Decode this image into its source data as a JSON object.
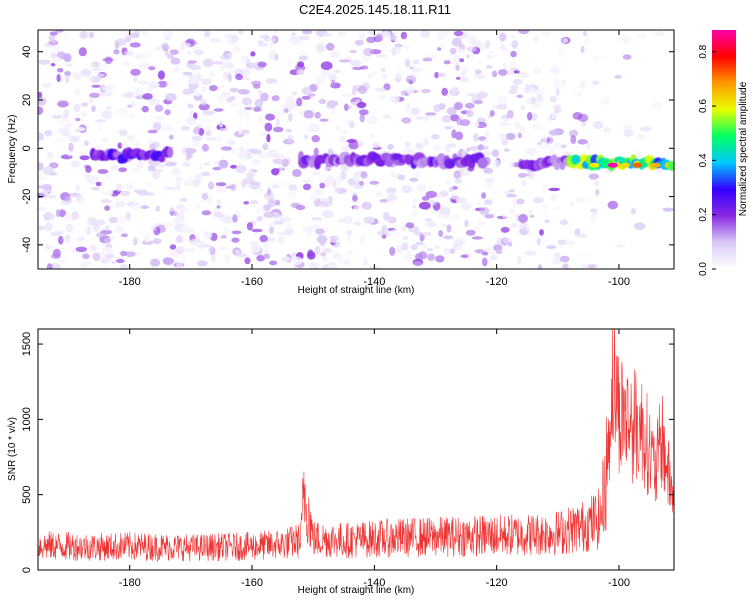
{
  "title": "C2E4.2025.145.18.11.R11",
  "chart_data": [
    {
      "type": "heatmap",
      "xlabel": "Height of straight line (km)",
      "ylabel": "Frequency (Hz)",
      "xlim": [
        -195,
        -91
      ],
      "ylim": [
        -50,
        49
      ],
      "xticks": [
        -180,
        -160,
        -140,
        -120,
        -100
      ],
      "yticks": [
        -40,
        -20,
        0,
        20,
        40
      ],
      "colorbar": {
        "label": "Normalized spectral amplitude",
        "range": [
          0,
          0.88
        ],
        "ticks": [
          0.0,
          0.2,
          0.4,
          0.6,
          0.8
        ],
        "colors": [
          "#ffffff",
          "#d9c9f5",
          "#8a2be2",
          "#3300ff",
          "#00c8ff",
          "#00ff60",
          "#e8ff00",
          "#ff9a00",
          "#ff0000",
          "#ff00aa"
        ]
      },
      "band": {
        "description_free_values": true,
        "segments": [
          {
            "x_start": -186,
            "x_end": -173,
            "frequency": -3,
            "amplitude": 0.25
          },
          {
            "x_start": -152,
            "x_end": -122,
            "frequency": -5,
            "amplitude": 0.22
          },
          {
            "x_start": -116,
            "x_end": -108,
            "frequency": -6,
            "amplitude": 0.2
          },
          {
            "x_start": -108,
            "x_end": -91,
            "frequency": -6,
            "amplitude": 0.55
          }
        ],
        "peak": {
          "x": -101,
          "frequency": -7,
          "amplitude": 0.88
        }
      }
    },
    {
      "type": "line",
      "xlabel": "Height of straight line (km)",
      "ylabel": "SNR (10 * v/v)",
      "xlim": [
        -195,
        -91
      ],
      "ylim": [
        0,
        1600
      ],
      "xticks": [
        -180,
        -160,
        -140,
        -120,
        -100
      ],
      "yticks": [
        0,
        500,
        1000,
        1500
      ],
      "color": "#ee3333",
      "series": [
        {
          "x": [
            -195,
            -190,
            -185,
            -180,
            -175,
            -170,
            -165,
            -160,
            -155,
            -152,
            -151.5,
            -150,
            -145,
            -140,
            -135,
            -130,
            -125,
            -120,
            -115,
            -110,
            -106,
            -103,
            -102,
            -101.5,
            -101,
            -100,
            -98,
            -96,
            -95,
            -94,
            -93,
            -92,
            -91
          ],
          "y": [
            180,
            175,
            170,
            175,
            170,
            165,
            170,
            175,
            190,
            220,
            610,
            230,
            220,
            230,
            240,
            245,
            250,
            255,
            260,
            275,
            320,
            380,
            750,
            1060,
            1400,
            1150,
            1050,
            1000,
            850,
            700,
            950,
            700,
            500
          ]
        }
      ]
    }
  ]
}
